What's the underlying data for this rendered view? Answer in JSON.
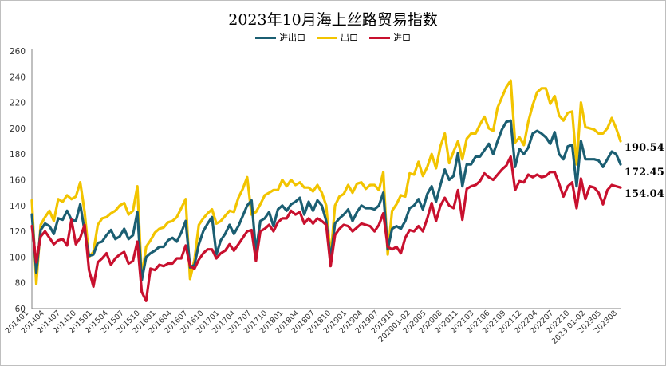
{
  "chart_data": {
    "type": "line",
    "title": "2023年10月海上丝路贸易指数",
    "ylim": [
      60,
      260
    ],
    "yticks": [
      60,
      80,
      100,
      120,
      140,
      160,
      180,
      200,
      220,
      240,
      260
    ],
    "grid": false,
    "legend_position": "top-center",
    "x_tick_labels": [
      "201401",
      "201404",
      "201407",
      "201410",
      "201501",
      "201504",
      "201507",
      "201510",
      "201601",
      "201604",
      "201607",
      "201610",
      "201701",
      "201704",
      "201707",
      "201710",
      "201801",
      "201804",
      "201807",
      "201810",
      "201901",
      "201904",
      "201907",
      "201910",
      "202001-02",
      "202005",
      "202008",
      "202011",
      "202103",
      "202106",
      "202109",
      "202112",
      "202204",
      "202207",
      "202210",
      "2023 01-02",
      "202305",
      "202308"
    ],
    "series": [
      {
        "name": "进出口",
        "color": "#1b5e72",
        "end_label": "172.45",
        "values": [
          133,
          88,
          121,
          126,
          124,
          118,
          130,
          129,
          136,
          129,
          128,
          141,
          120,
          101,
          102,
          111,
          112,
          117,
          121,
          114,
          116,
          122,
          114,
          117,
          135,
          82,
          100,
          103,
          105,
          108,
          108,
          113,
          115,
          112,
          119,
          128,
          92,
          94,
          110,
          120,
          126,
          131,
          102,
          113,
          118,
          125,
          118,
          124,
          132,
          140,
          144,
          104,
          128,
          130,
          135,
          124,
          137,
          140,
          136,
          141,
          143,
          146,
          133,
          143,
          136,
          144,
          140,
          128,
          98,
          126,
          130,
          133,
          137,
          128,
          135,
          140,
          138,
          138,
          137,
          140,
          150,
          106,
          122,
          124,
          122,
          128,
          138,
          140,
          145,
          137,
          149,
          155,
          143,
          156,
          168,
          160,
          163,
          181,
          155,
          172,
          172,
          178,
          178,
          183,
          188,
          180,
          190,
          199,
          205,
          206,
          170,
          184,
          180,
          185,
          196,
          198,
          196,
          193,
          188,
          197,
          180,
          176,
          186,
          187,
          155,
          190,
          176,
          176,
          176,
          175,
          170,
          176,
          182,
          180,
          172
        ]
      },
      {
        "name": "出口",
        "color": "#f2c400",
        "end_label": "190.54",
        "values": [
          144,
          79,
          125,
          131,
          136,
          128,
          145,
          143,
          148,
          145,
          147,
          158,
          135,
          100,
          104,
          125,
          130,
          131,
          134,
          136,
          140,
          142,
          133,
          136,
          155,
          84,
          108,
          113,
          119,
          122,
          123,
          127,
          128,
          131,
          138,
          145,
          83,
          98,
          125,
          130,
          134,
          137,
          126,
          128,
          132,
          136,
          135,
          146,
          153,
          162,
          133,
          135,
          141,
          148,
          150,
          152,
          152,
          160,
          155,
          160,
          156,
          158,
          154,
          154,
          151,
          156,
          150,
          140,
          100,
          140,
          147,
          149,
          156,
          150,
          157,
          158,
          153,
          156,
          156,
          152,
          166,
          102,
          136,
          141,
          148,
          147,
          165,
          164,
          174,
          163,
          170,
          180,
          169,
          186,
          196,
          173,
          182,
          190,
          176,
          192,
          196,
          196,
          203,
          209,
          200,
          198,
          216,
          224,
          232,
          237,
          189,
          193,
          187,
          205,
          218,
          228,
          231,
          231,
          219,
          225,
          210,
          206,
          212,
          213,
          172,
          220,
          201,
          200,
          199,
          196,
          196,
          200,
          208,
          200,
          190
        ]
      },
      {
        "name": "进口",
        "color": "#c8102e",
        "end_label": "154.04",
        "values": [
          124,
          96,
          116,
          120,
          115,
          110,
          113,
          114,
          109,
          129,
          110,
          115,
          125,
          90,
          77,
          96,
          99,
          103,
          94,
          99,
          102,
          104,
          95,
          97,
          112,
          73,
          66,
          91,
          90,
          94,
          93,
          95,
          95,
          99,
          99,
          109,
          93,
          91,
          98,
          103,
          106,
          106,
          99,
          103,
          105,
          110,
          105,
          110,
          115,
          120,
          121,
          97,
          120,
          122,
          125,
          120,
          127,
          130,
          130,
          136,
          133,
          135,
          126,
          130,
          126,
          130,
          128,
          125,
          93,
          117,
          122,
          125,
          124,
          120,
          123,
          126,
          125,
          124,
          120,
          125,
          134,
          108,
          106,
          108,
          103,
          115,
          121,
          120,
          124,
          120,
          130,
          142,
          128,
          140,
          146,
          140,
          138,
          152,
          129,
          153,
          155,
          156,
          159,
          165,
          162,
          160,
          164,
          168,
          171,
          178,
          152,
          159,
          158,
          164,
          162,
          164,
          162,
          163,
          166,
          166,
          157,
          147,
          155,
          158,
          138,
          161,
          145,
          155,
          154,
          150,
          141,
          152,
          156,
          155,
          154
        ]
      }
    ]
  }
}
